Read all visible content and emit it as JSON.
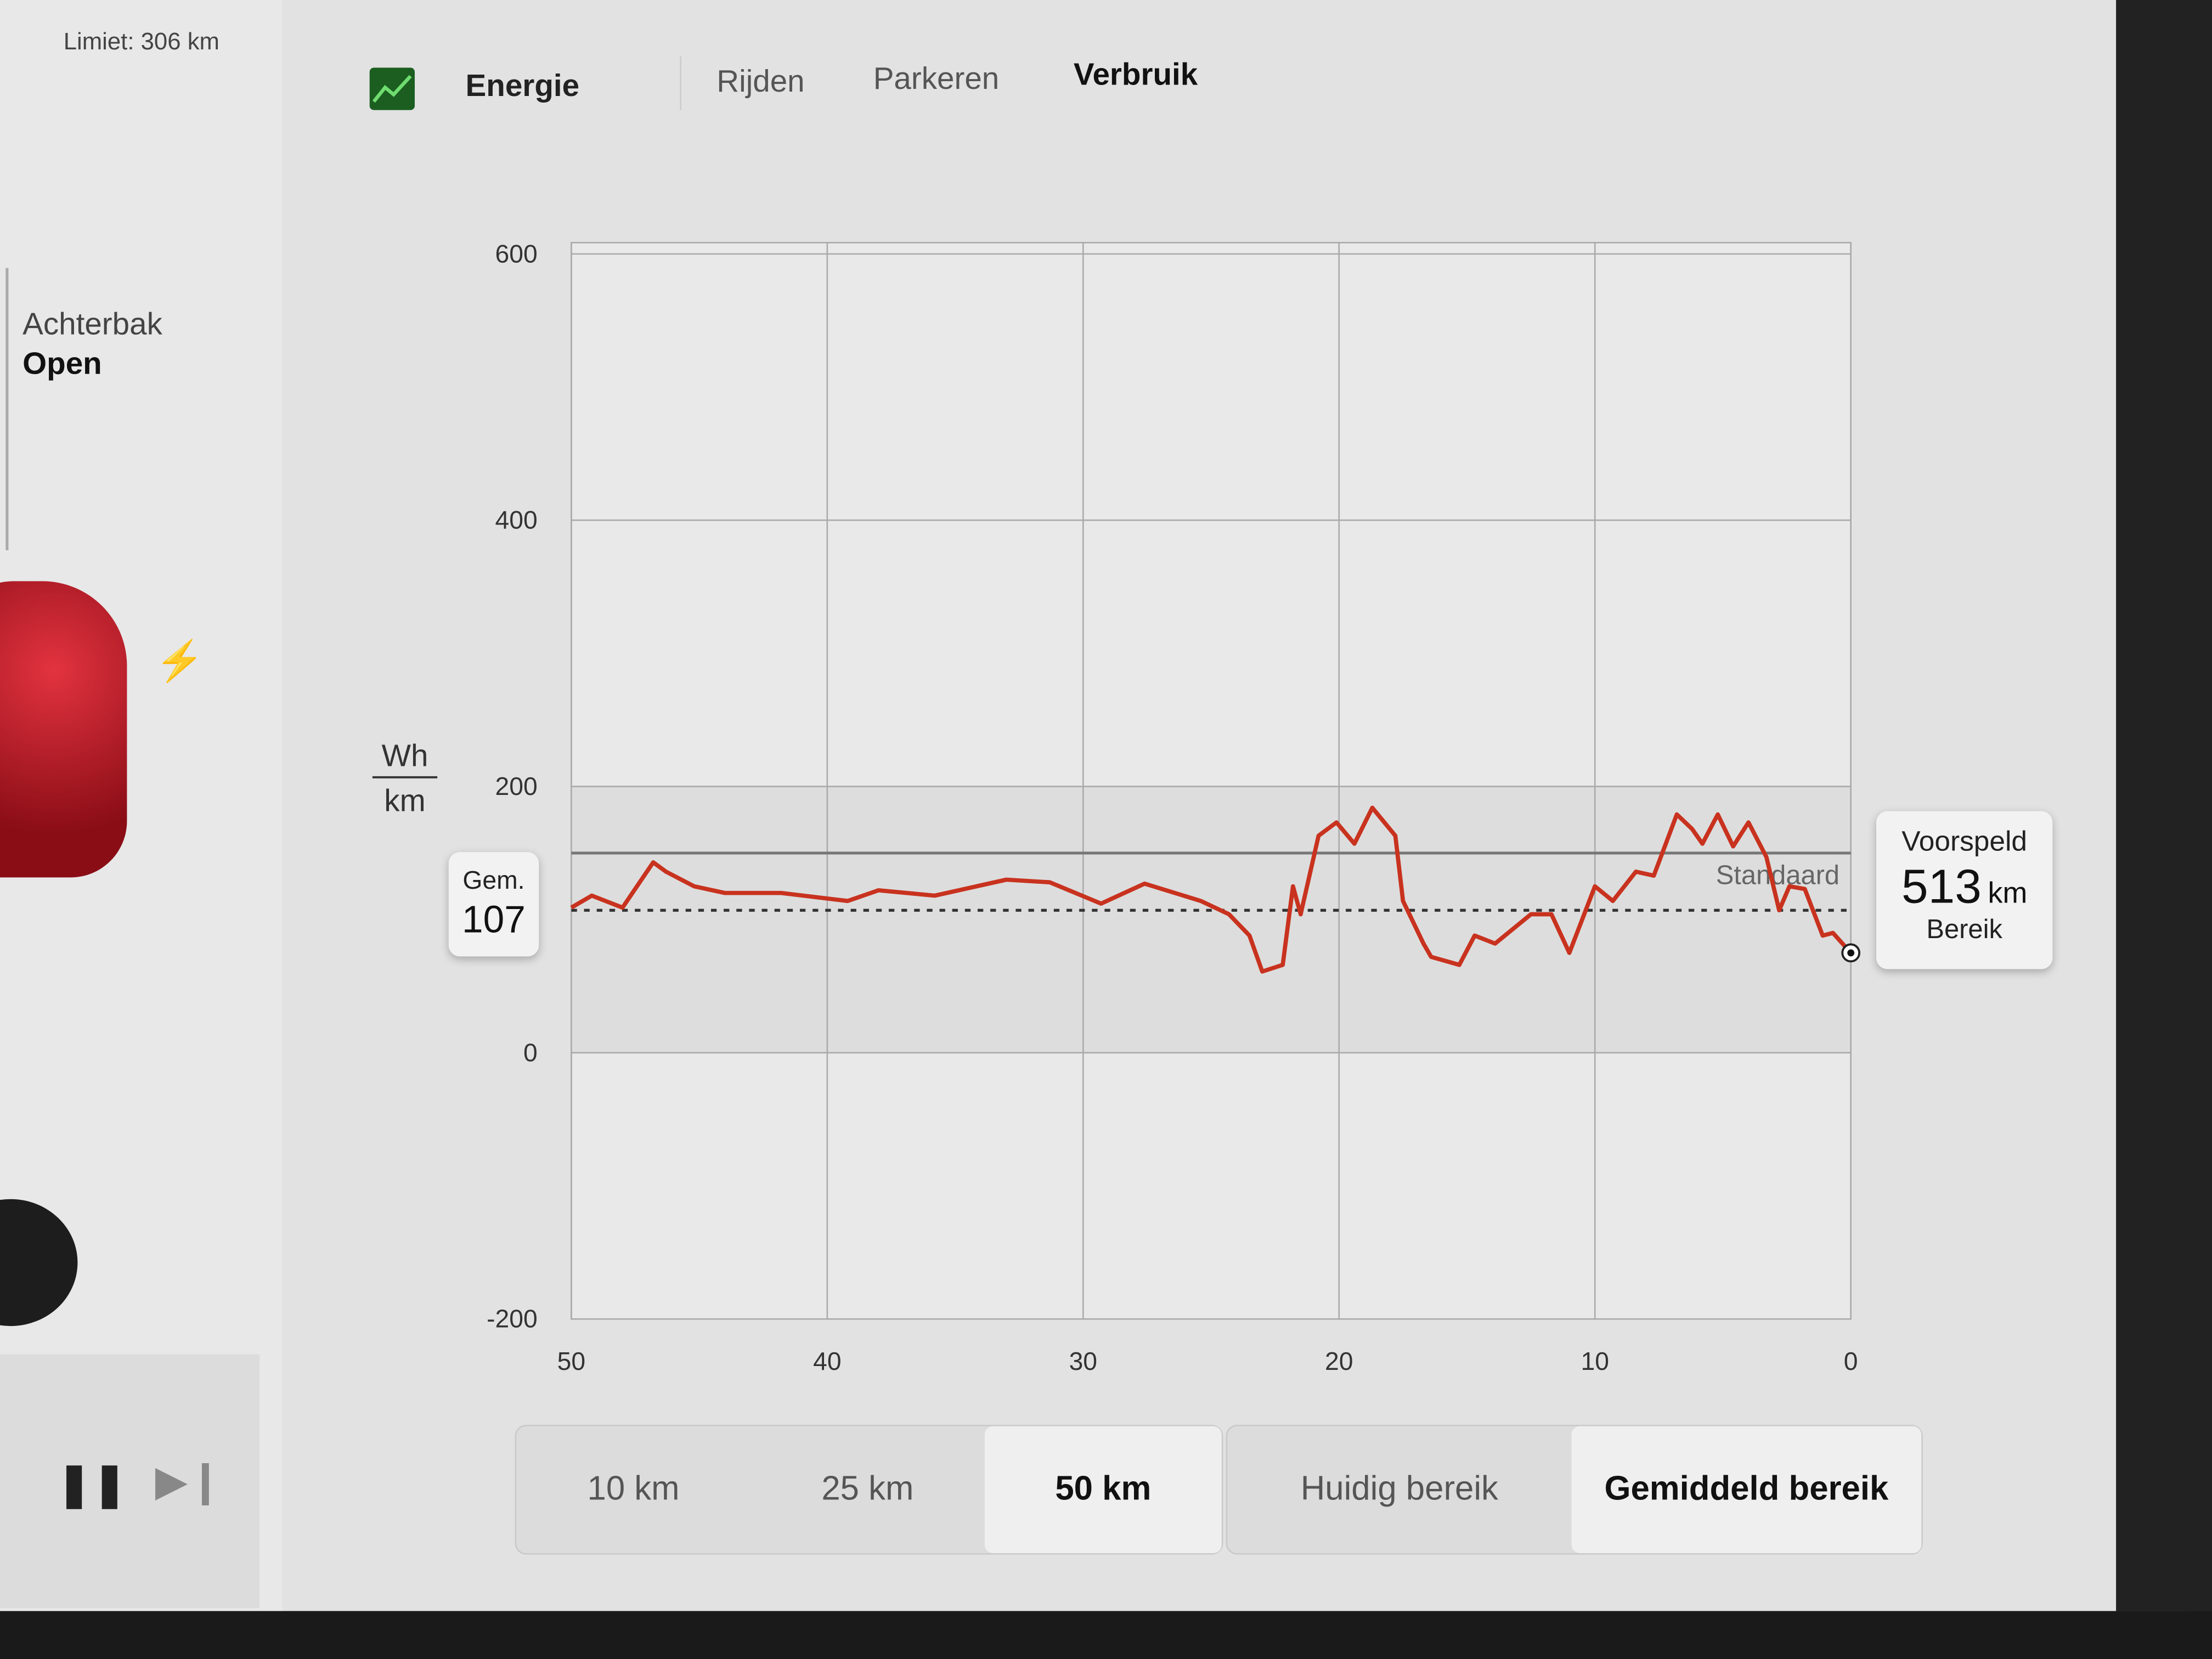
{
  "status": {
    "limit": "Limiet: 306 km",
    "trunk_label": "Achterbak",
    "trunk_state": "Open"
  },
  "tabs": [
    {
      "label": "Energie",
      "icon": "energy-graph-icon",
      "active": false
    },
    {
      "label": "Rijden",
      "active": false
    },
    {
      "label": "Parkeren",
      "active": false
    },
    {
      "label": "Verbruik",
      "active": true
    }
  ],
  "colors": {
    "line": "#c8321e",
    "energy_icon": "#1b5e20",
    "standard_line": "#777777"
  },
  "average": {
    "label": "Gem.",
    "value": "107"
  },
  "projected": {
    "label": "Voorspeld",
    "value": "513",
    "unit": "km",
    "sub": "Bereik"
  },
  "chart_data": {
    "type": "line",
    "ylabel_top": "Wh",
    "ylabel_bottom": "km",
    "xlim": [
      50,
      0
    ],
    "ylim": [
      -200,
      600
    ],
    "xticks": [
      "50",
      "40",
      "30",
      "20",
      "10",
      "0"
    ],
    "yticks": [
      "600",
      "400",
      "200",
      "0",
      "-200"
    ],
    "grid": true,
    "standard": {
      "label": "Standaard",
      "value": 150
    },
    "average_value": 107,
    "x": [
      50,
      49.2,
      48,
      46.8,
      46.3,
      45.2,
      44,
      41.8,
      39.2,
      38,
      35.8,
      33,
      31.3,
      29.3,
      27.6,
      25.4,
      24.3,
      23.5,
      23,
      22.2,
      21.8,
      21.5,
      20.8,
      20.1,
      19.4,
      18.7,
      17.8,
      17.5,
      16.7,
      16.4,
      15.3,
      14.7,
      13.9,
      12.5,
      11.7,
      11,
      10,
      9.3,
      8.4,
      7.7,
      6.8,
      6.2,
      5.8,
      5.2,
      4.6,
      4,
      3.3,
      2.8,
      2.4,
      1.8,
      1.1,
      0.7,
      0
    ],
    "y": [
      109,
      118,
      109,
      143,
      136,
      125,
      120,
      120,
      114,
      122,
      118,
      130,
      128,
      112,
      127,
      114,
      104,
      88,
      61,
      66,
      125,
      104,
      163,
      173,
      157,
      184,
      163,
      114,
      82,
      72,
      66,
      88,
      82,
      104,
      104,
      75,
      125,
      114,
      136,
      133,
      179,
      168,
      157,
      179,
      155,
      173,
      147,
      107,
      125,
      123,
      88,
      90,
      75
    ]
  },
  "range_buttons": [
    {
      "label": "10 km",
      "selected": false
    },
    {
      "label": "25 km",
      "selected": false
    },
    {
      "label": "50 km",
      "selected": true
    }
  ],
  "mode_buttons": [
    {
      "label": "Huidig bereik",
      "selected": false
    },
    {
      "label": "Gemiddeld bereik",
      "selected": true
    }
  ],
  "media": {
    "pause_icon": "pause-icon",
    "next_icon": "skip-next-icon"
  }
}
